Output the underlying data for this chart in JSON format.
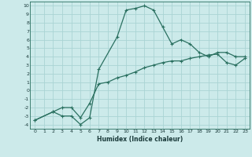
{
  "xlabel": "Humidex (Indice chaleur)",
  "background_color": "#cceaea",
  "grid_color": "#aad4d4",
  "line_color": "#2a7060",
  "xlim": [
    -0.5,
    23.5
  ],
  "ylim": [
    -4.5,
    10.5
  ],
  "xticks": [
    0,
    1,
    2,
    3,
    4,
    5,
    6,
    7,
    8,
    9,
    10,
    11,
    12,
    13,
    14,
    15,
    16,
    17,
    18,
    19,
    20,
    21,
    22,
    23
  ],
  "yticks": [
    -4,
    -3,
    -2,
    -1,
    0,
    1,
    2,
    3,
    4,
    5,
    6,
    7,
    8,
    9,
    10
  ],
  "curve1_x": [
    0,
    2,
    3,
    4,
    5,
    6,
    7,
    9,
    10,
    11,
    12,
    13,
    14,
    15,
    16,
    17,
    18,
    19,
    20,
    21,
    22,
    23
  ],
  "curve1_y": [
    -3.5,
    -2.5,
    -3.0,
    -3.0,
    -4.0,
    -3.2,
    2.5,
    6.3,
    9.5,
    9.7,
    10.0,
    9.5,
    7.5,
    5.5,
    6.0,
    5.5,
    4.5,
    4.0,
    4.5,
    4.5,
    4.0,
    4.0
  ],
  "curve2_x": [
    0,
    2,
    3,
    4,
    5,
    6,
    7,
    8,
    9,
    10,
    11,
    12,
    13,
    14,
    15,
    16,
    17,
    18,
    19,
    20,
    21,
    22,
    23
  ],
  "curve2_y": [
    -3.5,
    -2.5,
    -2.0,
    -2.0,
    -3.2,
    -1.5,
    0.8,
    1.0,
    1.5,
    1.8,
    2.2,
    2.7,
    3.0,
    3.3,
    3.5,
    3.5,
    3.8,
    4.0,
    4.2,
    4.3,
    3.3,
    3.0,
    3.8
  ]
}
